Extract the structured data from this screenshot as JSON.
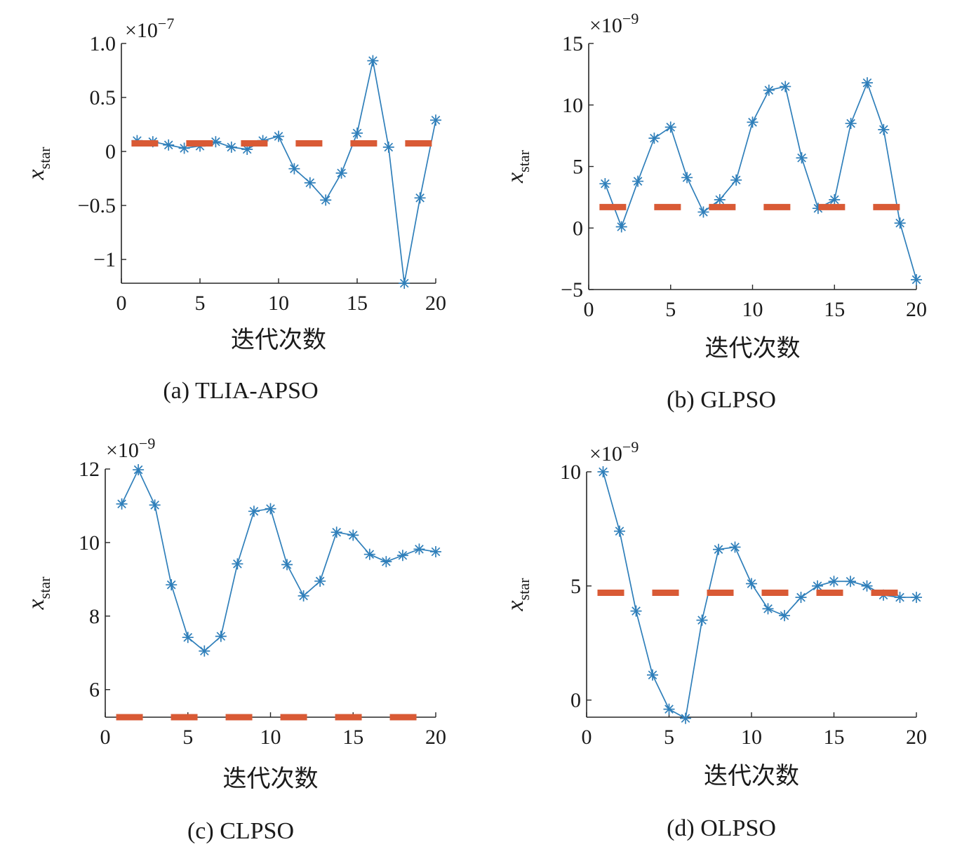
{
  "chart_data": [
    {
      "type": "line",
      "caption": "(a) TLIA-APSO",
      "xlabel": "迭代次数",
      "ylabel_base": "x",
      "ylabel_sub": "star",
      "exponent_base": "×10",
      "exponent_power": "−7",
      "xlim": [
        0,
        20
      ],
      "ylim": [
        -1.22,
        1.0
      ],
      "xticks": [
        0,
        5,
        10,
        15,
        20
      ],
      "xtick_labels": [
        "0",
        "5",
        "10",
        "15",
        "20"
      ],
      "yticks": [
        -1,
        -0.5,
        0,
        0.5,
        1.0
      ],
      "ytick_labels": [
        "−1",
        "−0.5",
        "0",
        "0.5",
        "1.0"
      ],
      "x": [
        1,
        2,
        3,
        4,
        5,
        6,
        7,
        8,
        9,
        10,
        11,
        12,
        13,
        14,
        15,
        16,
        17,
        18,
        19,
        20
      ],
      "series": [
        {
          "values": [
            0.1,
            0.09,
            0.06,
            0.03,
            0.05,
            0.09,
            0.04,
            0.02,
            0.1,
            0.14,
            -0.16,
            -0.29,
            -0.45,
            -0.2,
            0.17,
            0.84,
            0.04,
            -1.22,
            -0.43,
            0.29
          ],
          "color": "#2f7fba",
          "marker": "asterisk",
          "style": "solid"
        },
        {
          "values": [
            0.075,
            0.075,
            0.075,
            0.075,
            0.075,
            0.075,
            0.075,
            0.075,
            0.075,
            0.075,
            0.075,
            0.075,
            0.075,
            0.075,
            0.075,
            0.075,
            0.075,
            0.075,
            0.075,
            0.075
          ],
          "color": "#d95a35",
          "marker": "none",
          "style": "dashed"
        }
      ]
    },
    {
      "type": "line",
      "caption": "(b) GLPSO",
      "xlabel": "迭代次数",
      "ylabel_base": "x",
      "ylabel_sub": "star",
      "exponent_base": "×10",
      "exponent_power": "−9",
      "xlim": [
        0,
        20
      ],
      "ylim": [
        -5,
        15
      ],
      "xticks": [
        0,
        5,
        10,
        15,
        20
      ],
      "xtick_labels": [
        "0",
        "5",
        "10",
        "15",
        "20"
      ],
      "yticks": [
        -5,
        0,
        5,
        10,
        15
      ],
      "ytick_labels": [
        "−5",
        "0",
        "5",
        "10",
        "15"
      ],
      "x": [
        1,
        2,
        3,
        4,
        5,
        6,
        7,
        8,
        9,
        10,
        11,
        12,
        13,
        14,
        15,
        16,
        17,
        18,
        19,
        20
      ],
      "series": [
        {
          "values": [
            3.6,
            0.1,
            3.8,
            7.3,
            8.2,
            4.1,
            1.3,
            2.3,
            3.9,
            8.6,
            11.2,
            11.5,
            5.7,
            1.6,
            2.3,
            8.5,
            11.8,
            8.0,
            0.4,
            -4.2
          ],
          "color": "#2f7fba",
          "marker": "asterisk",
          "style": "solid"
        },
        {
          "values": [
            1.7,
            1.7,
            1.7,
            1.7,
            1.7,
            1.7,
            1.7,
            1.7,
            1.7,
            1.7,
            1.7,
            1.7,
            1.7,
            1.7,
            1.7,
            1.7,
            1.7,
            1.7,
            1.7,
            1.7
          ],
          "color": "#d95a35",
          "marker": "none",
          "style": "dashed"
        }
      ]
    },
    {
      "type": "line",
      "caption": "(c) CLPSO",
      "xlabel": "迭代次数",
      "ylabel_base": "x",
      "ylabel_sub": "star",
      "exponent_base": "×10",
      "exponent_power": "−9",
      "xlim": [
        0,
        20
      ],
      "ylim": [
        5.25,
        12
      ],
      "xticks": [
        0,
        5,
        10,
        15,
        20
      ],
      "xtick_labels": [
        "0",
        "5",
        "10",
        "15",
        "20"
      ],
      "yticks": [
        6,
        8,
        10,
        12
      ],
      "ytick_labels": [
        "6",
        "8",
        "10",
        "12"
      ],
      "x": [
        1,
        2,
        3,
        4,
        5,
        6,
        7,
        8,
        9,
        10,
        11,
        12,
        13,
        14,
        15,
        16,
        17,
        18,
        19,
        20
      ],
      "series": [
        {
          "values": [
            11.05,
            11.98,
            11.02,
            8.85,
            7.42,
            7.05,
            7.45,
            9.42,
            10.85,
            10.92,
            9.4,
            8.55,
            8.95,
            10.28,
            10.2,
            9.68,
            9.48,
            9.65,
            9.82,
            9.75
          ],
          "color": "#2f7fba",
          "marker": "asterisk",
          "style": "solid"
        },
        {
          "values": [
            5.25,
            5.25,
            5.25,
            5.25,
            5.25,
            5.25,
            5.25,
            5.25,
            5.25,
            5.25,
            5.25,
            5.25,
            5.25,
            5.25,
            5.25,
            5.25,
            5.25,
            5.25,
            5.25,
            5.25
          ],
          "color": "#d95a35",
          "marker": "none",
          "style": "dashed"
        }
      ]
    },
    {
      "type": "line",
      "caption": "(d) OLPSO",
      "xlabel": "迭代次数",
      "ylabel_base": "x",
      "ylabel_sub": "star",
      "exponent_base": "×10",
      "exponent_power": "−9",
      "xlim": [
        0,
        20
      ],
      "ylim": [
        -0.75,
        10
      ],
      "xticks": [
        0,
        5,
        10,
        15,
        20
      ],
      "xtick_labels": [
        "0",
        "5",
        "10",
        "15",
        "20"
      ],
      "yticks": [
        0,
        5,
        10
      ],
      "ytick_labels": [
        "0",
        "5",
        "10"
      ],
      "x": [
        1,
        2,
        3,
        4,
        5,
        6,
        7,
        8,
        9,
        10,
        11,
        12,
        13,
        14,
        15,
        16,
        17,
        18,
        19,
        20
      ],
      "series": [
        {
          "values": [
            10.0,
            7.4,
            3.9,
            1.1,
            -0.4,
            -0.8,
            3.5,
            6.6,
            6.7,
            5.1,
            4.0,
            3.7,
            4.5,
            5.0,
            5.2,
            5.2,
            5.0,
            4.6,
            4.5,
            4.5
          ],
          "color": "#2f7fba",
          "marker": "asterisk",
          "style": "solid"
        },
        {
          "values": [
            4.7,
            4.7,
            4.7,
            4.7,
            4.7,
            4.7,
            4.7,
            4.7,
            4.7,
            4.7,
            4.7,
            4.7,
            4.7,
            4.7,
            4.7,
            4.7,
            4.7,
            4.7,
            4.7,
            4.7
          ],
          "color": "#d95a35",
          "marker": "none",
          "style": "dashed"
        }
      ]
    }
  ]
}
